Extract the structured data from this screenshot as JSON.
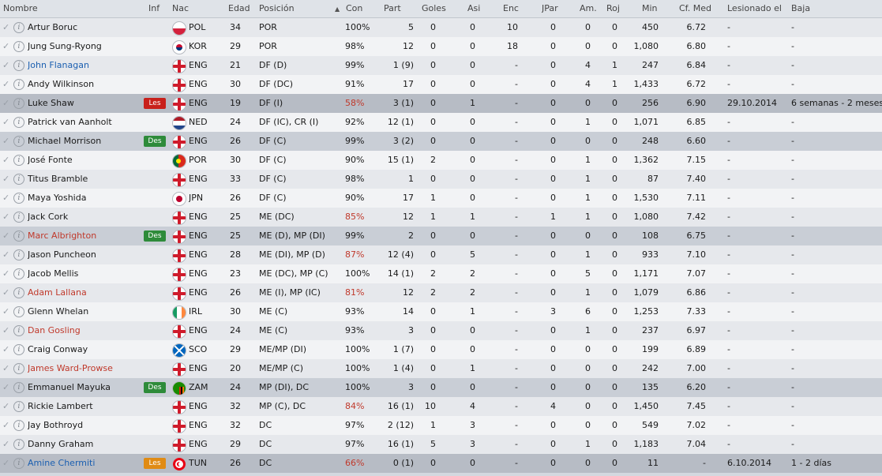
{
  "headers": {
    "nombre": "Nombre",
    "inf": "Inf",
    "nac": "Nac",
    "edad": "Edad",
    "posicion": "Posición",
    "con": "Con",
    "con_sort_arrow": "▲",
    "part": "Part",
    "goles": "Goles",
    "asi": "Asi",
    "enc": "Enc",
    "jpar": "JPar",
    "am": "Am.",
    "roj": "Roj",
    "min": "Min",
    "cfmed": "Cf. Med",
    "lesionado": "Lesionado el",
    "baja": "Baja"
  },
  "colors": {
    "les_red": "#c8201b",
    "les_orange": "#e08b14",
    "des_green": "#2e8b3a",
    "name_blue": "#1b5fb0",
    "name_red": "#c0392b"
  },
  "players": [
    {
      "name": "Artur Boruc",
      "inf": "",
      "nac": "POL",
      "flag": "poland-flag-icon",
      "edad": "34",
      "pos": "POR",
      "con": "100%",
      "part": "5",
      "goles": "0",
      "asi": "0",
      "enc": "10",
      "jpar": "0",
      "am": "0",
      "roj": "0",
      "min": "450",
      "cf": "6.72",
      "les": "-",
      "baja": "-"
    },
    {
      "name": "Jung Sung-Ryong",
      "inf": "",
      "nac": "KOR",
      "flag": "korea-flag-icon",
      "edad": "29",
      "pos": "POR",
      "con": "98%",
      "part": "12",
      "goles": "0",
      "asi": "0",
      "enc": "18",
      "jpar": "0",
      "am": "0",
      "roj": "0",
      "min": "1,080",
      "cf": "6.80",
      "les": "-",
      "baja": "-"
    },
    {
      "name": "John Flanagan",
      "inf": "",
      "nac": "ENG",
      "flag": "england-flag-icon",
      "edad": "21",
      "pos": "DF (D)",
      "con": "99%",
      "part": "1 (9)",
      "goles": "0",
      "asi": "0",
      "enc": "-",
      "jpar": "0",
      "am": "4",
      "roj": "1",
      "min": "247",
      "cf": "6.84",
      "les": "-",
      "baja": "-"
    },
    {
      "name": "Andy Wilkinson",
      "inf": "",
      "nac": "ENG",
      "flag": "england-flag-icon",
      "edad": "30",
      "pos": "DF (DC)",
      "con": "91%",
      "part": "17",
      "goles": "0",
      "asi": "0",
      "enc": "-",
      "jpar": "0",
      "am": "4",
      "roj": "1",
      "min": "1,433",
      "cf": "6.72",
      "les": "-",
      "baja": "-"
    },
    {
      "name": "Luke Shaw",
      "inf": "Les",
      "nac": "ENG",
      "flag": "england-flag-icon",
      "edad": "19",
      "pos": "DF (I)",
      "con": "58%",
      "part": "3 (1)",
      "goles": "0",
      "asi": "1",
      "enc": "-",
      "jpar": "0",
      "am": "0",
      "roj": "0",
      "min": "256",
      "cf": "6.90",
      "les": "29.10.2014",
      "baja": "6 semanas - 2 meses"
    },
    {
      "name": "Patrick van Aanholt",
      "inf": "",
      "nac": "NED",
      "flag": "netherlands-flag-icon",
      "edad": "24",
      "pos": "DF (IC), CR (I)",
      "con": "92%",
      "part": "12 (1)",
      "goles": "0",
      "asi": "0",
      "enc": "-",
      "jpar": "0",
      "am": "1",
      "roj": "0",
      "min": "1,071",
      "cf": "6.85",
      "les": "-",
      "baja": "-"
    },
    {
      "name": "Michael Morrison",
      "inf": "Des",
      "nac": "ENG",
      "flag": "england-flag-icon",
      "edad": "26",
      "pos": "DF (C)",
      "con": "99%",
      "part": "3 (2)",
      "goles": "0",
      "asi": "0",
      "enc": "-",
      "jpar": "0",
      "am": "0",
      "roj": "0",
      "min": "248",
      "cf": "6.60",
      "les": "-",
      "baja": "-"
    },
    {
      "name": "José Fonte",
      "inf": "",
      "nac": "POR",
      "flag": "portugal-flag-icon",
      "edad": "30",
      "pos": "DF (C)",
      "con": "90%",
      "part": "15 (1)",
      "goles": "2",
      "asi": "0",
      "enc": "-",
      "jpar": "0",
      "am": "1",
      "roj": "0",
      "min": "1,362",
      "cf": "7.15",
      "les": "-",
      "baja": "-"
    },
    {
      "name": "Titus Bramble",
      "inf": "",
      "nac": "ENG",
      "flag": "england-flag-icon",
      "edad": "33",
      "pos": "DF (C)",
      "con": "98%",
      "part": "1",
      "goles": "0",
      "asi": "0",
      "enc": "-",
      "jpar": "0",
      "am": "1",
      "roj": "0",
      "min": "87",
      "cf": "7.40",
      "les": "-",
      "baja": "-"
    },
    {
      "name": "Maya Yoshida",
      "inf": "",
      "nac": "JPN",
      "flag": "japan-flag-icon",
      "edad": "26",
      "pos": "DF (C)",
      "con": "90%",
      "part": "17",
      "goles": "1",
      "asi": "0",
      "enc": "-",
      "jpar": "0",
      "am": "1",
      "roj": "0",
      "min": "1,530",
      "cf": "7.11",
      "les": "-",
      "baja": "-"
    },
    {
      "name": "Jack Cork",
      "inf": "",
      "nac": "ENG",
      "flag": "england-flag-icon",
      "edad": "25",
      "pos": "ME (DC)",
      "con": "85%",
      "part": "12",
      "goles": "1",
      "asi": "1",
      "enc": "-",
      "jpar": "1",
      "am": "1",
      "roj": "0",
      "min": "1,080",
      "cf": "7.42",
      "les": "-",
      "baja": "-"
    },
    {
      "name": "Marc Albrighton",
      "inf": "Des",
      "nac": "ENG",
      "flag": "england-flag-icon",
      "edad": "25",
      "pos": "ME (D), MP (DI)",
      "con": "99%",
      "part": "2",
      "goles": "0",
      "asi": "0",
      "enc": "-",
      "jpar": "0",
      "am": "0",
      "roj": "0",
      "min": "108",
      "cf": "6.75",
      "les": "-",
      "baja": "-"
    },
    {
      "name": "Jason Puncheon",
      "inf": "",
      "nac": "ENG",
      "flag": "england-flag-icon",
      "edad": "28",
      "pos": "ME (DI), MP (D)",
      "con": "87%",
      "part": "12 (4)",
      "goles": "0",
      "asi": "5",
      "enc": "-",
      "jpar": "0",
      "am": "1",
      "roj": "0",
      "min": "933",
      "cf": "7.10",
      "les": "-",
      "baja": "-"
    },
    {
      "name": "Jacob Mellis",
      "inf": "",
      "nac": "ENG",
      "flag": "england-flag-icon",
      "edad": "23",
      "pos": "ME (DC), MP (C)",
      "con": "100%",
      "part": "14 (1)",
      "goles": "2",
      "asi": "2",
      "enc": "-",
      "jpar": "0",
      "am": "5",
      "roj": "0",
      "min": "1,171",
      "cf": "7.07",
      "les": "-",
      "baja": "-"
    },
    {
      "name": "Adam Lallana",
      "inf": "",
      "nac": "ENG",
      "flag": "england-flag-icon",
      "edad": "26",
      "pos": "ME (I), MP (IC)",
      "con": "81%",
      "part": "12",
      "goles": "2",
      "asi": "2",
      "enc": "-",
      "jpar": "0",
      "am": "1",
      "roj": "0",
      "min": "1,079",
      "cf": "6.86",
      "les": "-",
      "baja": "-"
    },
    {
      "name": "Glenn Whelan",
      "inf": "",
      "nac": "IRL",
      "flag": "ireland-flag-icon",
      "edad": "30",
      "pos": "ME (C)",
      "con": "93%",
      "part": "14",
      "goles": "0",
      "asi": "1",
      "enc": "-",
      "jpar": "3",
      "am": "6",
      "roj": "0",
      "min": "1,253",
      "cf": "7.33",
      "les": "-",
      "baja": "-"
    },
    {
      "name": "Dan Gosling",
      "inf": "",
      "nac": "ENG",
      "flag": "england-flag-icon",
      "edad": "24",
      "pos": "ME (C)",
      "con": "93%",
      "part": "3",
      "goles": "0",
      "asi": "0",
      "enc": "-",
      "jpar": "0",
      "am": "1",
      "roj": "0",
      "min": "237",
      "cf": "6.97",
      "les": "-",
      "baja": "-"
    },
    {
      "name": "Craig Conway",
      "inf": "",
      "nac": "SCO",
      "flag": "scotland-flag-icon",
      "edad": "29",
      "pos": "ME/MP (DI)",
      "con": "100%",
      "part": "1 (7)",
      "goles": "0",
      "asi": "0",
      "enc": "-",
      "jpar": "0",
      "am": "0",
      "roj": "0",
      "min": "199",
      "cf": "6.89",
      "les": "-",
      "baja": "-"
    },
    {
      "name": "James Ward-Prowse",
      "inf": "",
      "nac": "ENG",
      "flag": "england-flag-icon",
      "edad": "20",
      "pos": "ME/MP (C)",
      "con": "100%",
      "part": "1 (4)",
      "goles": "0",
      "asi": "1",
      "enc": "-",
      "jpar": "0",
      "am": "0",
      "roj": "0",
      "min": "242",
      "cf": "7.00",
      "les": "-",
      "baja": "-"
    },
    {
      "name": "Emmanuel Mayuka",
      "inf": "Des",
      "nac": "ZAM",
      "flag": "zambia-flag-icon",
      "edad": "24",
      "pos": "MP (DI), DC",
      "con": "100%",
      "part": "3",
      "goles": "0",
      "asi": "0",
      "enc": "-",
      "jpar": "0",
      "am": "0",
      "roj": "0",
      "min": "135",
      "cf": "6.20",
      "les": "-",
      "baja": "-"
    },
    {
      "name": "Rickie Lambert",
      "inf": "",
      "nac": "ENG",
      "flag": "england-flag-icon",
      "edad": "32",
      "pos": "MP (C), DC",
      "con": "84%",
      "part": "16 (1)",
      "goles": "10",
      "asi": "4",
      "enc": "-",
      "jpar": "4",
      "am": "0",
      "roj": "0",
      "min": "1,450",
      "cf": "7.45",
      "les": "-",
      "baja": "-"
    },
    {
      "name": "Jay Bothroyd",
      "inf": "",
      "nac": "ENG",
      "flag": "england-flag-icon",
      "edad": "32",
      "pos": "DC",
      "con": "97%",
      "part": "2 (12)",
      "goles": "1",
      "asi": "3",
      "enc": "-",
      "jpar": "0",
      "am": "0",
      "roj": "0",
      "min": "549",
      "cf": "7.02",
      "les": "-",
      "baja": "-"
    },
    {
      "name": "Danny Graham",
      "inf": "",
      "nac": "ENG",
      "flag": "england-flag-icon",
      "edad": "29",
      "pos": "DC",
      "con": "97%",
      "part": "16 (1)",
      "goles": "5",
      "asi": "3",
      "enc": "-",
      "jpar": "0",
      "am": "1",
      "roj": "0",
      "min": "1,183",
      "cf": "7.04",
      "les": "-",
      "baja": "-"
    },
    {
      "name": "Amine Chermiti",
      "inf": "Les",
      "nac": "TUN",
      "flag": "tunisia-flag-icon",
      "edad": "26",
      "pos": "DC",
      "con": "66%",
      "part": "0 (1)",
      "goles": "0",
      "asi": "0",
      "enc": "-",
      "jpar": "0",
      "am": "0",
      "roj": "0",
      "min": "11",
      "cf": "-",
      "les": "6.10.2014",
      "baja": "1 - 2 días"
    }
  ]
}
